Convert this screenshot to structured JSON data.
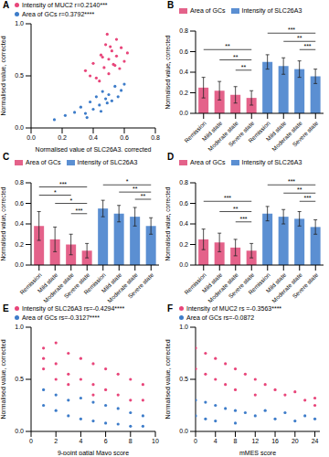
{
  "chart_data": [
    {
      "type": "scatter",
      "title": "A",
      "xlabel": "Normalised value of SLC26A3, corrected",
      "ylabel": "Normalised value, corrected",
      "legend": "top",
      "xlim": [
        0,
        0.8
      ],
      "xticks": [
        {
          "value": 0,
          "label": "0.0"
        },
        0.2,
        0.4,
        0.6,
        0.8
      ],
      "ylim": [
        0,
        1
      ],
      "yticks": [
        {
          "value": 0,
          "label": "0.0"
        },
        0.5,
        {
          "value": 1,
          "label": "1.0"
        }
      ],
      "series": [
        {
          "name": "Intensity of MUC2 r=0.2140***",
          "color": "#e8457a",
          "x": [
            0.35,
            0.4,
            0.42,
            0.45,
            0.47,
            0.48,
            0.5,
            0.5,
            0.52,
            0.53,
            0.55,
            0.55,
            0.57,
            0.58,
            0.6,
            0.62,
            0.44,
            0.38,
            0.49,
            0.54,
            0.46,
            0.51
          ],
          "values": [
            0.55,
            0.62,
            0.48,
            0.7,
            0.58,
            0.8,
            0.66,
            0.52,
            0.74,
            0.61,
            0.85,
            0.69,
            0.57,
            0.77,
            0.64,
            0.72,
            0.45,
            0.5,
            0.9,
            0.6,
            0.68,
            0.78
          ]
        },
        {
          "name": "Area of GCs r=0.3792****",
          "color": "#3d7cc9",
          "x": [
            0.15,
            0.22,
            0.28,
            0.32,
            0.35,
            0.38,
            0.4,
            0.42,
            0.44,
            0.46,
            0.48,
            0.5,
            0.52,
            0.54,
            0.56,
            0.58,
            0.6,
            0.36,
            0.45,
            0.49
          ],
          "values": [
            0.08,
            0.12,
            0.15,
            0.2,
            0.14,
            0.25,
            0.18,
            0.3,
            0.22,
            0.35,
            0.28,
            0.32,
            0.26,
            0.4,
            0.3,
            0.36,
            0.42,
            0.1,
            0.16,
            0.24
          ]
        }
      ]
    },
    {
      "type": "bar",
      "title": "B",
      "ylabel": "Normalised value, corrected",
      "legend": "top",
      "categories": [
        "Remission",
        "Mild state",
        "Moderate state",
        "Severe state"
      ],
      "ylim": [
        0,
        0.8
      ],
      "yticks": [
        {
          "value": 0,
          "label": "0.0"
        },
        0.2,
        0.4,
        0.6,
        0.8
      ],
      "series": [
        {
          "name": "Area of GCs",
          "color": "#e4628a",
          "values": [
            0.25,
            0.22,
            0.18,
            0.15
          ],
          "errors": [
            0.1,
            0.09,
            0.08,
            0.07
          ]
        },
        {
          "name": "Intensity of SLC26A3",
          "color": "#5b8fd2",
          "values": [
            0.5,
            0.46,
            0.43,
            0.36
          ],
          "errors": [
            0.07,
            0.08,
            0.08,
            0.07
          ]
        }
      ],
      "annotations": [
        {
          "series": 0,
          "from": 0,
          "to": 3,
          "y": 0.62,
          "label": "**"
        },
        {
          "series": 0,
          "from": 1,
          "to": 3,
          "y": 0.52,
          "label": "**"
        },
        {
          "series": 0,
          "from": 2,
          "to": 3,
          "y": 0.42,
          "label": "**"
        },
        {
          "series": 1,
          "from": 0,
          "to": 3,
          "y": 0.78,
          "label": "***"
        },
        {
          "series": 1,
          "from": 1,
          "to": 3,
          "y": 0.7,
          "label": "**"
        },
        {
          "series": 1,
          "from": 2,
          "to": 3,
          "y": 0.62,
          "label": "***"
        }
      ]
    },
    {
      "type": "bar",
      "title": "C",
      "ylabel": "Normalised value, corrected",
      "legend": "top",
      "categories": [
        "Remission",
        "Mild state",
        "Moderate state",
        "Severe state"
      ],
      "ylim": [
        0,
        0.8
      ],
      "yticks": [
        {
          "value": 0,
          "label": "0.0"
        },
        0.2,
        0.4,
        0.6,
        0.8
      ],
      "series": [
        {
          "name": "Area of GCs",
          "color": "#e4628a",
          "values": [
            0.38,
            0.25,
            0.2,
            0.14
          ],
          "errors": [
            0.14,
            0.12,
            0.1,
            0.07
          ]
        },
        {
          "name": "Intensity of SLC26A3",
          "color": "#5b8fd2",
          "values": [
            0.55,
            0.5,
            0.47,
            0.38
          ],
          "errors": [
            0.08,
            0.08,
            0.09,
            0.08
          ]
        }
      ],
      "annotations": [
        {
          "series": 0,
          "from": 0,
          "to": 3,
          "y": 0.76,
          "label": "***"
        },
        {
          "series": 0,
          "from": 0,
          "to": 2,
          "y": 0.68,
          "label": "*"
        },
        {
          "series": 0,
          "from": 1,
          "to": 3,
          "y": 0.6,
          "label": "*"
        },
        {
          "series": 0,
          "from": 2,
          "to": 3,
          "y": 0.5,
          "label": "***"
        },
        {
          "series": 1,
          "from": 0,
          "to": 3,
          "y": 0.78,
          "label": "*"
        },
        {
          "series": 1,
          "from": 1,
          "to": 3,
          "y": 0.71,
          "label": "**"
        },
        {
          "series": 1,
          "from": 2,
          "to": 3,
          "y": 0.64,
          "label": "**"
        }
      ]
    },
    {
      "type": "bar",
      "title": "D",
      "ylabel": "Normalised value, corrected",
      "legend": "top",
      "categories": [
        "Remission",
        "Mild state",
        "Moderate state",
        "Severe state"
      ],
      "ylim": [
        0,
        0.8
      ],
      "yticks": [
        {
          "value": 0,
          "label": "0.0"
        },
        0.2,
        0.4,
        0.6,
        0.8
      ],
      "series": [
        {
          "name": "Area of GCs",
          "color": "#e4628a",
          "values": [
            0.25,
            0.22,
            0.17,
            0.14
          ],
          "errors": [
            0.1,
            0.09,
            0.08,
            0.07
          ]
        },
        {
          "name": "Intensity of SLC26A3",
          "color": "#5b8fd2",
          "values": [
            0.5,
            0.47,
            0.45,
            0.37
          ],
          "errors": [
            0.07,
            0.07,
            0.07,
            0.07
          ]
        }
      ],
      "annotations": [
        {
          "series": 0,
          "from": 0,
          "to": 3,
          "y": 0.62,
          "label": "***"
        },
        {
          "series": 0,
          "from": 1,
          "to": 3,
          "y": 0.52,
          "label": "**"
        },
        {
          "series": 0,
          "from": 2,
          "to": 3,
          "y": 0.42,
          "label": "***"
        },
        {
          "series": 1,
          "from": 0,
          "to": 3,
          "y": 0.78,
          "label": "***"
        },
        {
          "series": 1,
          "from": 1,
          "to": 3,
          "y": 0.7,
          "label": "**"
        },
        {
          "series": 1,
          "from": 2,
          "to": 3,
          "y": 0.62,
          "label": "***"
        }
      ]
    },
    {
      "type": "scatter",
      "title": "E",
      "xlabel": "9-point patial Mayo score",
      "ylabel": "Normalised value, corrected",
      "legend": "top",
      "xlim": [
        0,
        10
      ],
      "xticks": [
        0,
        2,
        4,
        6,
        8,
        10
      ],
      "ylim": [
        0,
        1
      ],
      "yticks": [
        {
          "value": 0,
          "label": "0.0"
        },
        0.5,
        {
          "value": 1,
          "label": "1.0"
        }
      ],
      "series": [
        {
          "name": "Intensity of SLC26A3 rs=-0.4294****",
          "color": "#e8457a",
          "x": [
            1,
            1,
            1,
            2,
            2,
            2,
            3,
            3,
            3,
            4,
            4,
            5,
            5,
            5,
            6,
            6,
            7,
            7,
            8,
            8,
            9,
            9
          ],
          "values": [
            0.8,
            0.7,
            0.6,
            0.85,
            0.65,
            0.5,
            0.75,
            0.55,
            0.45,
            0.7,
            0.5,
            0.65,
            0.45,
            0.35,
            0.6,
            0.4,
            0.55,
            0.35,
            0.5,
            0.3,
            0.45,
            0.3
          ]
        },
        {
          "name": "Area of GCs rs=-0.3127****",
          "color": "#3d7cc9",
          "x": [
            1,
            1,
            2,
            2,
            3,
            3,
            4,
            4,
            5,
            5,
            6,
            6,
            7,
            7,
            8,
            8,
            9,
            9
          ],
          "values": [
            0.4,
            0.25,
            0.35,
            0.2,
            0.3,
            0.15,
            0.32,
            0.12,
            0.28,
            0.1,
            0.25,
            0.08,
            0.22,
            0.07,
            0.18,
            0.05,
            0.15,
            0.05
          ]
        }
      ]
    },
    {
      "type": "scatter",
      "title": "F",
      "xlabel": "mMES score",
      "ylabel": "Normalised value, corrected",
      "legend": "top",
      "xlim": [
        0,
        25
      ],
      "xticks": [
        0,
        4,
        8,
        12,
        16,
        20,
        24
      ],
      "ylim": [
        0,
        1
      ],
      "yticks": [
        {
          "value": 0,
          "label": "0.0"
        },
        0.5,
        {
          "value": 1,
          "label": "1.0"
        }
      ],
      "series": [
        {
          "name": "Intensity of MUC2 rs =-0.3563****",
          "color": "#e8457a",
          "x": [
            0,
            0,
            2,
            2,
            4,
            4,
            6,
            6,
            8,
            8,
            10,
            12,
            12,
            14,
            16,
            18,
            20,
            22,
            24,
            24
          ],
          "values": [
            0.8,
            0.6,
            0.75,
            0.55,
            0.7,
            0.5,
            0.65,
            0.45,
            0.6,
            0.4,
            0.55,
            0.5,
            0.35,
            0.45,
            0.4,
            0.35,
            0.38,
            0.3,
            0.32,
            0.25
          ]
        },
        {
          "name": "Area of GCs rs=-0.0872",
          "color": "#3d7cc9",
          "x": [
            0,
            0,
            2,
            2,
            4,
            4,
            6,
            8,
            8,
            10,
            12,
            14,
            16,
            18,
            20,
            22,
            24
          ],
          "values": [
            0.3,
            0.15,
            0.28,
            0.12,
            0.25,
            0.1,
            0.22,
            0.2,
            0.08,
            0.18,
            0.15,
            0.2,
            0.12,
            0.18,
            0.1,
            0.15,
            0.12
          ]
        }
      ]
    }
  ]
}
